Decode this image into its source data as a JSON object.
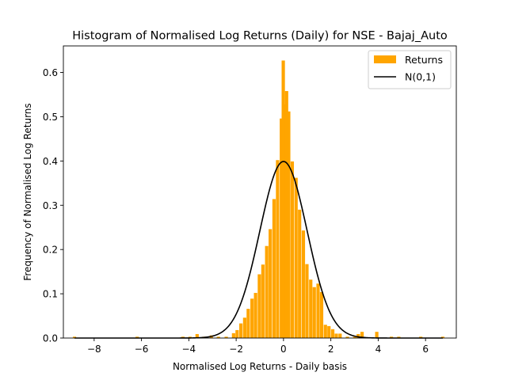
{
  "chart_data": {
    "type": "bar",
    "title": "Histogram of Normalised Log Returns (Daily) for NSE - Bajaj_Auto",
    "xlabel": "Normalised Log Returns - Daily basis",
    "ylabel": "Frequency of Normalised Log Returns",
    "xlim": [
      -9.3,
      7.3
    ],
    "ylim": [
      0,
      0.66
    ],
    "xticks": [
      -8,
      -6,
      -4,
      -2,
      0,
      2,
      4,
      6
    ],
    "yticks": [
      0.0,
      0.1,
      0.2,
      0.3,
      0.4,
      0.5,
      0.6
    ],
    "xtick_labels": [
      "−8",
      "−6",
      "−4",
      "−2",
      "0",
      "2",
      "4",
      "6"
    ],
    "ytick_labels": [
      "0.0",
      "0.1",
      "0.2",
      "0.3",
      "0.4",
      "0.5",
      "0.6"
    ],
    "grid": false,
    "legend_position": "top-right",
    "bin_width": 0.155,
    "series": [
      {
        "name": "Returns",
        "type": "histogram",
        "color": "#FFA500",
        "bins": [
          {
            "x": -8.83,
            "y": 0.003
          },
          {
            "x": -6.18,
            "y": 0.003
          },
          {
            "x": -4.25,
            "y": 0.003
          },
          {
            "x": -3.95,
            "y": 0.003
          },
          {
            "x": -3.65,
            "y": 0.009
          },
          {
            "x": -3.35,
            "y": 0.003
          },
          {
            "x": -3.05,
            "y": 0.006
          },
          {
            "x": -2.75,
            "y": 0.003
          },
          {
            "x": -2.42,
            "y": 0.003
          },
          {
            "x": -2.11,
            "y": 0.011
          },
          {
            "x": -1.96,
            "y": 0.018
          },
          {
            "x": -1.8,
            "y": 0.033
          },
          {
            "x": -1.64,
            "y": 0.046
          },
          {
            "x": -1.49,
            "y": 0.066
          },
          {
            "x": -1.33,
            "y": 0.089
          },
          {
            "x": -1.18,
            "y": 0.102
          },
          {
            "x": -1.02,
            "y": 0.144
          },
          {
            "x": -0.87,
            "y": 0.166
          },
          {
            "x": -0.71,
            "y": 0.208
          },
          {
            "x": -0.56,
            "y": 0.246
          },
          {
            "x": -0.4,
            "y": 0.314
          },
          {
            "x": -0.25,
            "y": 0.402
          },
          {
            "x": -0.09,
            "y": 0.496
          },
          {
            "x": 0.06,
            "y": 0.528
          },
          {
            "x": -0.01,
            "y": 0.627
          },
          {
            "x": 0.13,
            "y": 0.558
          },
          {
            "x": 0.22,
            "y": 0.512
          },
          {
            "x": 0.37,
            "y": 0.399
          },
          {
            "x": 0.53,
            "y": 0.362
          },
          {
            "x": 0.68,
            "y": 0.29
          },
          {
            "x": 0.84,
            "y": 0.243
          },
          {
            "x": 0.99,
            "y": 0.167
          },
          {
            "x": 1.15,
            "y": 0.132
          },
          {
            "x": 1.3,
            "y": 0.115
          },
          {
            "x": 1.46,
            "y": 0.123
          },
          {
            "x": 1.61,
            "y": 0.104
          },
          {
            "x": 1.77,
            "y": 0.03
          },
          {
            "x": 1.92,
            "y": 0.027
          },
          {
            "x": 2.08,
            "y": 0.02
          },
          {
            "x": 2.23,
            "y": 0.01
          },
          {
            "x": 2.39,
            "y": 0.01
          },
          {
            "x": 2.7,
            "y": 0.003
          },
          {
            "x": 3.01,
            "y": 0.003
          },
          {
            "x": 3.16,
            "y": 0.009
          },
          {
            "x": 3.32,
            "y": 0.014
          },
          {
            "x": 3.94,
            "y": 0.014
          },
          {
            "x": 4.56,
            "y": 0.003
          },
          {
            "x": 4.87,
            "y": 0.003
          },
          {
            "x": 5.8,
            "y": 0.003
          },
          {
            "x": 6.73,
            "y": 0.003
          }
        ]
      },
      {
        "name": "N(0,1)",
        "type": "line",
        "color": "#000000",
        "function": "standard normal pdf",
        "x_range": [
          -8.83,
          6.73
        ]
      }
    ]
  }
}
